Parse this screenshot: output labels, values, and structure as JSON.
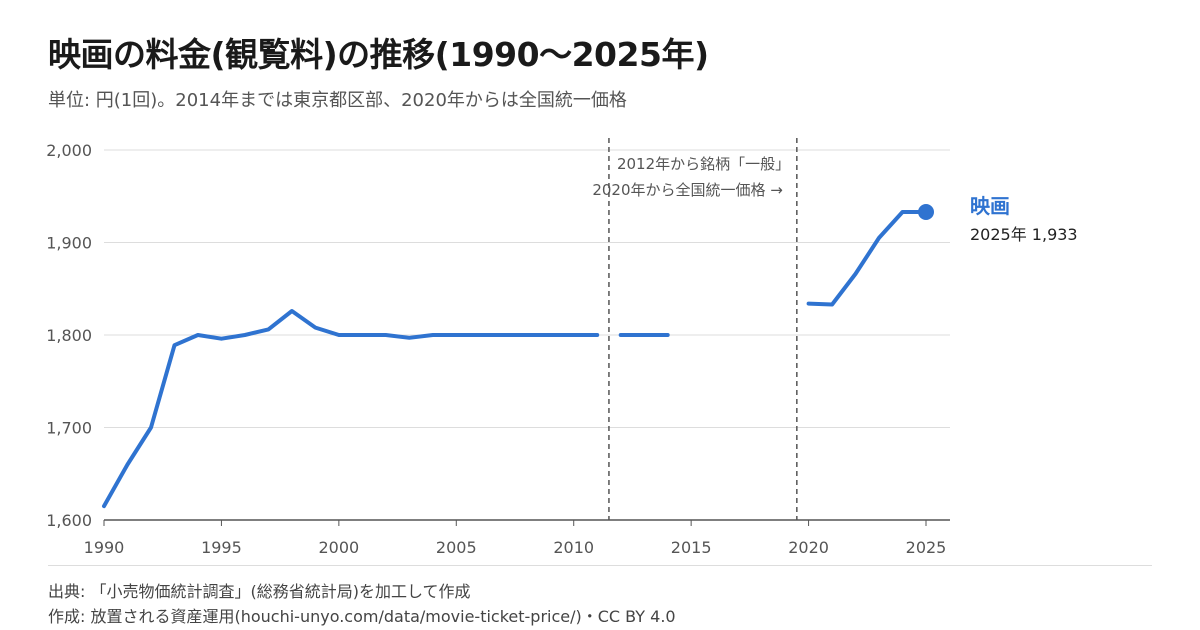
{
  "chart_data": {
    "type": "line",
    "title": "映画の料金(観覧料)の推移(1990〜2025年)",
    "subtitle": "単位: 円(1回)。2014年までは東京都区部、2020年からは全国統一価格",
    "xlabel": "",
    "ylabel": "",
    "xlim": [
      1990,
      2025
    ],
    "ylim": [
      1600,
      2000
    ],
    "x_ticks": [
      1990,
      1995,
      2000,
      2005,
      2010,
      2015,
      2020,
      2025
    ],
    "y_ticks": [
      1600,
      1700,
      1800,
      1900,
      2000
    ],
    "y_tick_labels": [
      "1,600",
      "1,700",
      "1,800",
      "1,900",
      "2,000"
    ],
    "grid": true,
    "series": [
      {
        "name": "映画",
        "color": "#2f73d0",
        "segments": [
          [
            {
              "x": 1990,
              "y": 1615
            },
            {
              "x": 1991,
              "y": 1660
            },
            {
              "x": 1992,
              "y": 1700
            },
            {
              "x": 1993,
              "y": 1789
            },
            {
              "x": 1994,
              "y": 1800
            },
            {
              "x": 1995,
              "y": 1796
            },
            {
              "x": 1996,
              "y": 1800
            },
            {
              "x": 1997,
              "y": 1806
            },
            {
              "x": 1998,
              "y": 1826
            },
            {
              "x": 1999,
              "y": 1808
            },
            {
              "x": 2000,
              "y": 1800
            },
            {
              "x": 2001,
              "y": 1800
            },
            {
              "x": 2002,
              "y": 1800
            },
            {
              "x": 2003,
              "y": 1797
            },
            {
              "x": 2004,
              "y": 1800
            },
            {
              "x": 2005,
              "y": 1800
            },
            {
              "x": 2006,
              "y": 1800
            },
            {
              "x": 2007,
              "y": 1800
            },
            {
              "x": 2008,
              "y": 1800
            },
            {
              "x": 2009,
              "y": 1800
            },
            {
              "x": 2010,
              "y": 1800
            },
            {
              "x": 2011,
              "y": 1800
            }
          ],
          [
            {
              "x": 2012,
              "y": 1800
            },
            {
              "x": 2013,
              "y": 1800
            },
            {
              "x": 2014,
              "y": 1800
            }
          ],
          [
            {
              "x": 2020,
              "y": 1834
            },
            {
              "x": 2021,
              "y": 1833
            },
            {
              "x": 2022,
              "y": 1866
            },
            {
              "x": 2023,
              "y": 1905
            },
            {
              "x": 2024,
              "y": 1933
            },
            {
              "x": 2025,
              "y": 1933
            }
          ]
        ],
        "end_label": "2025年 1,933"
      }
    ],
    "annotations": [
      {
        "x": 2011.5,
        "text": "2012年から銘柄「一般」",
        "text_side": "right"
      },
      {
        "x": 2019.5,
        "text": "2020年から全国統一価格 →",
        "text_side": "left"
      }
    ]
  },
  "footer": {
    "source": "出典: 「小売物価統計調査」(総務省統計局)を加工して作成",
    "credit": "作成: 放置される資産運用(houchi-unyo.com/data/movie-ticket-price/)・CC BY 4.0"
  }
}
